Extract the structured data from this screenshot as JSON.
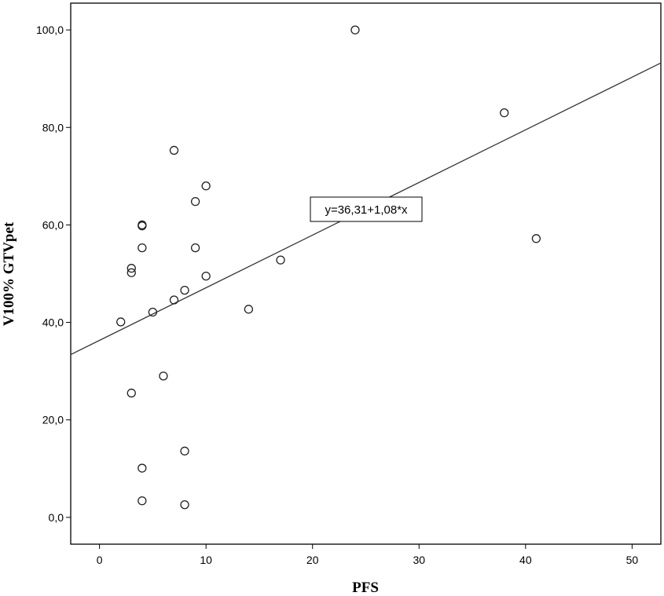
{
  "chart_data": {
    "type": "scatter",
    "xlabel": "PFS",
    "ylabel": "V100% GTVpet",
    "xlim": [
      -2.7,
      52.7
    ],
    "ylim": [
      -5.5,
      105.5
    ],
    "x_ticks": [
      0,
      10,
      20,
      30,
      40,
      50
    ],
    "x_tick_labels": [
      "0",
      "10",
      "20",
      "30",
      "40",
      "50"
    ],
    "y_ticks": [
      0,
      20,
      40,
      60,
      80,
      100
    ],
    "y_tick_labels": [
      "0,0",
      "20,0",
      "40,0",
      "60,0",
      "80,0",
      "100,0"
    ],
    "grid": false,
    "points": [
      {
        "x": 24,
        "y": 100.0
      },
      {
        "x": 38,
        "y": 83.0
      },
      {
        "x": 7,
        "y": 75.3
      },
      {
        "x": 10,
        "y": 68.0
      },
      {
        "x": 9,
        "y": 64.8
      },
      {
        "x": 4,
        "y": 60.0
      },
      {
        "x": 4,
        "y": 59.8
      },
      {
        "x": 41,
        "y": 57.2
      },
      {
        "x": 4,
        "y": 55.3
      },
      {
        "x": 9,
        "y": 55.3
      },
      {
        "x": 17,
        "y": 52.8
      },
      {
        "x": 3,
        "y": 51.1
      },
      {
        "x": 3,
        "y": 50.2
      },
      {
        "x": 10,
        "y": 49.5
      },
      {
        "x": 8,
        "y": 46.6
      },
      {
        "x": 7,
        "y": 44.6
      },
      {
        "x": 14,
        "y": 42.7
      },
      {
        "x": 5,
        "y": 42.1
      },
      {
        "x": 2,
        "y": 40.1
      },
      {
        "x": 6,
        "y": 29.0
      },
      {
        "x": 3,
        "y": 25.5
      },
      {
        "x": 8,
        "y": 13.6
      },
      {
        "x": 4,
        "y": 10.1
      },
      {
        "x": 4,
        "y": 3.4
      },
      {
        "x": 8,
        "y": 2.6
      }
    ],
    "fit_line": {
      "intercept": 36.31,
      "slope": 1.08,
      "label": "y=36,31+1,08*x"
    }
  }
}
